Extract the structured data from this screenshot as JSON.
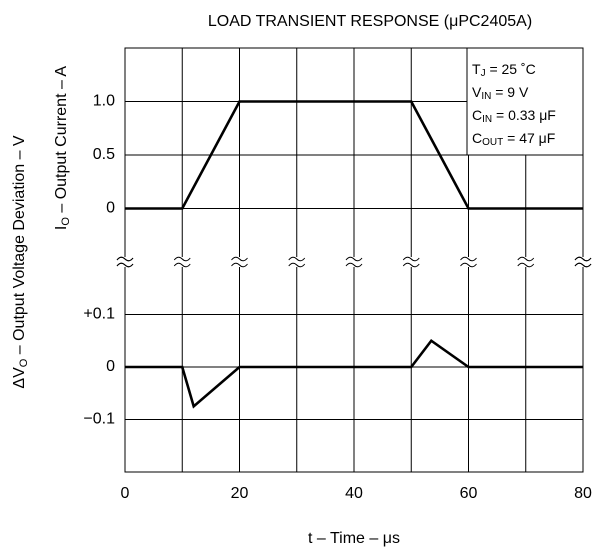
{
  "chart_data": [
    {
      "type": "line",
      "title": "LOAD TRANSIENT RESPONSE (μPC2405A)",
      "ylabel": {
        "main": "I",
        "sub": "O",
        "rest": " – Output Current – A"
      },
      "x": [
        0,
        10,
        20,
        50,
        60,
        80
      ],
      "values": [
        0,
        0,
        1,
        1,
        0,
        0
      ],
      "color": "#000000",
      "ylim": [
        -0.5,
        1.5
      ],
      "yticks": [
        {
          "value": 1,
          "label": "1.0"
        },
        0.5,
        0
      ],
      "grid": true,
      "annotations": [
        {
          "main": "T",
          "sub": "J",
          "rest": " = 25 ˚C"
        },
        {
          "main": "V",
          "sub": "IN",
          "rest": " = 9 V"
        },
        {
          "main": "C",
          "sub": "IN",
          "rest": " = 0.33 μF"
        },
        {
          "main": "C",
          "sub": "OUT",
          "rest": " = 47 μF"
        }
      ]
    },
    {
      "type": "line",
      "ylabel": {
        "main": "ΔV",
        "sub": "O",
        "rest": " – Output Voltage Deviation – V"
      },
      "xlabel": "t – Time – μs",
      "x": [
        0,
        10,
        12,
        20,
        50,
        53.5,
        60,
        80
      ],
      "values": [
        0,
        0,
        -0.075,
        0,
        0,
        0.05,
        0,
        0
      ],
      "color": "#000000",
      "xlim": [
        0,
        80
      ],
      "xticks": [
        0,
        20,
        40,
        60,
        80
      ],
      "xminor": [
        10,
        30,
        50,
        70
      ],
      "ylim": [
        -0.2,
        0.2
      ],
      "yticks": [
        {
          "value": 0.1,
          "label": "+0.1"
        },
        0,
        {
          "value": -0.1,
          "label": "−0.1"
        }
      ],
      "grid": true
    }
  ]
}
